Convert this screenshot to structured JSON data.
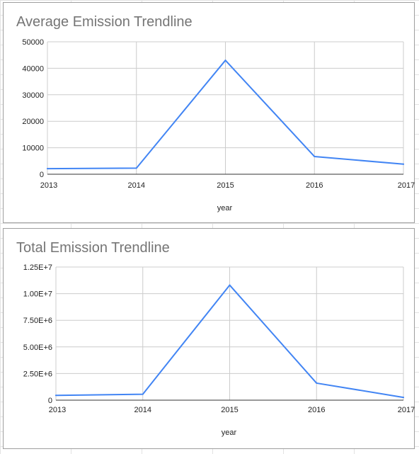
{
  "chart_data": [
    {
      "type": "line",
      "title": "Average Emission Trendline",
      "xlabel": "year",
      "ylabel": "",
      "x": [
        "2013",
        "2014",
        "2015",
        "2016",
        "2017"
      ],
      "y_ticks": [
        "0",
        "10000",
        "20000",
        "30000",
        "40000",
        "50000"
      ],
      "ylim": [
        0,
        50000
      ],
      "grid": true,
      "series": [
        {
          "values": [
            2100,
            2300,
            43000,
            6700,
            3800
          ],
          "color": "#4285f4"
        }
      ]
    },
    {
      "type": "line",
      "title": "Total Emission Trendline",
      "xlabel": "year",
      "ylabel": "",
      "x": [
        "2013",
        "2014",
        "2015",
        "2016",
        "2017"
      ],
      "y_ticks": [
        "0",
        "2.50E+6",
        "5.00E+6",
        "7.50E+6",
        "1.00E+7",
        "1.25E+7"
      ],
      "ylim": [
        0,
        12500000
      ],
      "grid": true,
      "series": [
        {
          "values": [
            450000,
            560000,
            10800000,
            1600000,
            260000
          ],
          "color": "#4285f4"
        }
      ]
    }
  ]
}
